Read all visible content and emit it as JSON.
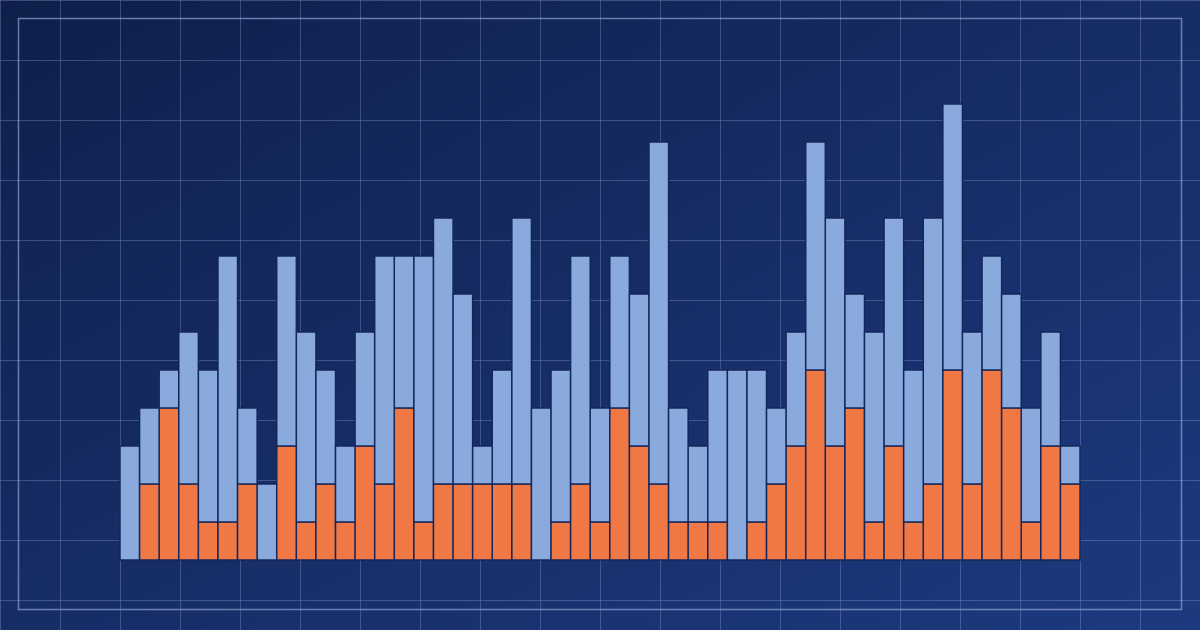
{
  "chart_data": {
    "type": "stacked-bar",
    "categories": [
      null,
      null,
      null,
      null,
      null,
      null,
      null,
      null,
      null,
      null,
      null,
      null,
      null,
      null,
      null,
      null,
      null,
      null,
      null,
      null,
      null,
      null,
      null,
      null,
      null,
      null,
      null,
      null,
      null,
      null,
      null,
      null,
      null,
      null,
      null,
      null,
      null,
      null,
      null,
      null,
      null,
      null,
      null,
      null,
      null,
      null,
      null,
      null,
      null
    ],
    "ylim": [
      0,
      14
    ],
    "series": [
      {
        "color": "#f07845",
        "values": [
          0,
          2,
          4,
          2,
          1,
          1,
          2,
          0,
          3,
          1,
          2,
          1,
          3,
          2,
          4,
          1,
          2,
          2,
          2,
          2,
          2,
          0,
          1,
          2,
          1,
          4,
          3,
          2,
          1,
          1,
          1,
          0,
          1,
          2,
          3,
          5,
          3,
          4,
          1,
          3,
          1,
          2,
          5,
          2,
          5,
          4,
          1,
          3,
          2
        ]
      },
      {
        "color": "#8aa9dc",
        "values": [
          3,
          2,
          1,
          4,
          4,
          7,
          2,
          2,
          5,
          5,
          3,
          2,
          3,
          6,
          4,
          7,
          7,
          5,
          1,
          3,
          7,
          4,
          4,
          6,
          3,
          4,
          4,
          9,
          3,
          2,
          4,
          5,
          4,
          2,
          3,
          6,
          6,
          3,
          5,
          6,
          4,
          7,
          7,
          4,
          3,
          3,
          3,
          3,
          1
        ]
      }
    ]
  }
}
